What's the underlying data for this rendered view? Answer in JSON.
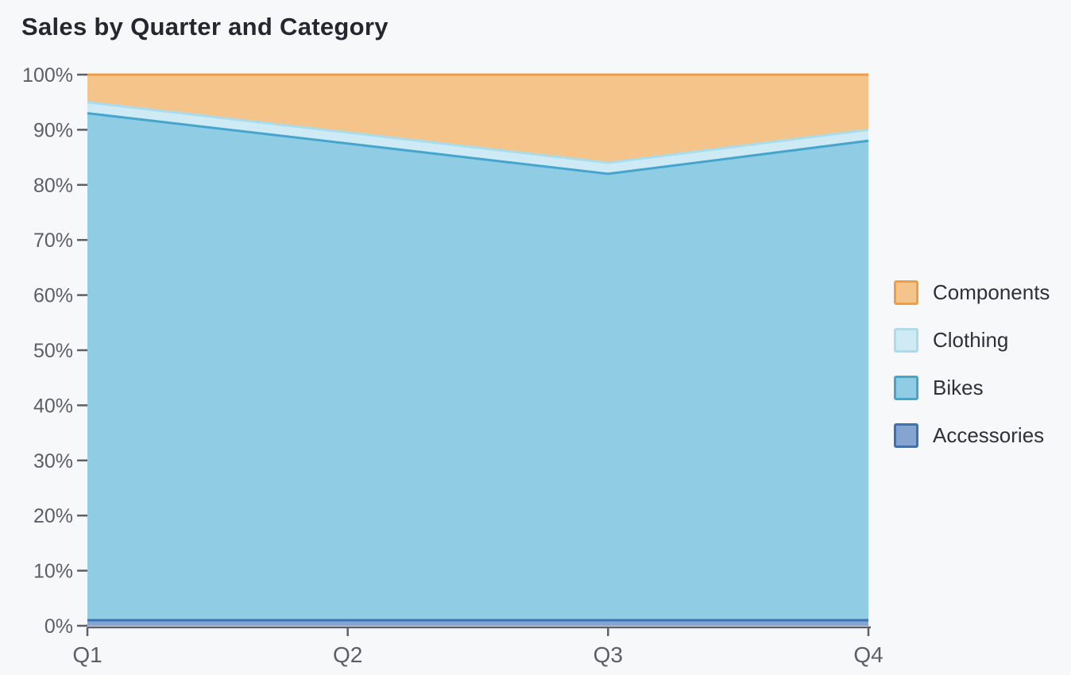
{
  "page": {
    "background": "#f7f8fa"
  },
  "chart_data": {
    "type": "area",
    "stacked": true,
    "normalized": "percent",
    "title": "Sales by Quarter and Category",
    "categories": [
      "Q1",
      "Q2",
      "Q3",
      "Q4"
    ],
    "series": [
      {
        "name": "Accessories",
        "values": [
          1,
          1,
          1,
          1
        ],
        "fill": "#85a5d0",
        "stroke": "#3a72b4"
      },
      {
        "name": "Bikes",
        "values": [
          92,
          86.5,
          81,
          87
        ],
        "fill": "#90cde5",
        "stroke": "#45a5cc"
      },
      {
        "name": "Clothing",
        "values": [
          2,
          2,
          2,
          2
        ],
        "fill": "#cdeaf5",
        "stroke": "#a9dcec"
      },
      {
        "name": "Components",
        "values": [
          5,
          10.5,
          16,
          10
        ],
        "fill": "#f4c48a",
        "stroke": "#ef9e43"
      }
    ],
    "cumulative_tops_percent": {
      "Accessories": [
        1,
        1,
        1,
        1
      ],
      "Bikes": [
        93,
        87.5,
        82,
        88
      ],
      "Clothing": [
        95,
        89.5,
        84,
        90
      ],
      "Components": [
        100,
        100,
        100,
        100
      ]
    },
    "xlabel": "",
    "ylabel": "",
    "x_axis": {
      "labels": [
        "Q1",
        "Q2",
        "Q3",
        "Q4"
      ]
    },
    "y_axis": {
      "min": 0,
      "max": 100,
      "tick_step": 10,
      "tick_labels": [
        "0%",
        "10%",
        "20%",
        "30%",
        "40%",
        "50%",
        "60%",
        "70%",
        "80%",
        "90%",
        "100%"
      ]
    },
    "grid": false,
    "legend": {
      "position": "right",
      "items": [
        "Components",
        "Clothing",
        "Bikes",
        "Accessories"
      ]
    },
    "colors": {
      "axis_line": "#5c6066",
      "tick_mark": "#5c6066",
      "tick_label": "#5b5f64",
      "title": "#24272e",
      "legend_text": "#2e3238"
    }
  }
}
